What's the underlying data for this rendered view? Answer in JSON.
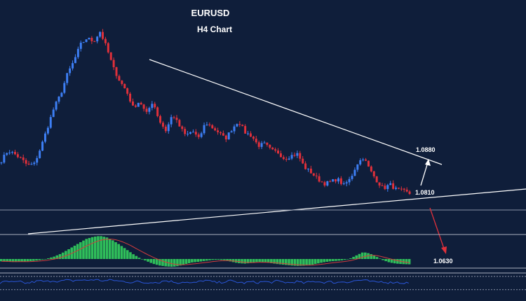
{
  "chart_data": {
    "type": "candlestick",
    "title": "EURUSD",
    "subtitle": "H4 Chart",
    "xlabel": "",
    "ylabel": "",
    "grid": false,
    "colors": {
      "background": "#0f1e3a",
      "up": "#3d7ff5",
      "down": "#e0303a",
      "trendline": "#ffffff",
      "support_line": "#8a92a6",
      "target_up_arrow": "#ffffff",
      "target_down_arrow": "#e0303a",
      "histogram_positive": "#2fbe5a",
      "histogram_negative": "#2fbe5a",
      "signal_line": "#d23c3c",
      "oscillator_line": "#2a56d9",
      "oscillator_levels": "#8a92a6"
    },
    "price_levels": [
      {
        "label": "1.0880",
        "value": 1.088
      },
      {
        "label": "1.0810",
        "value": 1.081
      },
      {
        "label": "1.0630",
        "value": 1.063
      }
    ],
    "close_path": [
      1.09,
      1.093,
      1.092,
      1.0905,
      1.0885,
      1.089,
      1.094,
      1.1,
      1.106,
      1.11,
      1.116,
      1.12,
      1.125,
      1.127,
      1.126,
      1.129,
      1.124,
      1.118,
      1.114,
      1.111,
      1.106,
      1.108,
      1.104,
      1.108,
      1.102,
      1.099,
      1.104,
      1.1005,
      1.0975,
      1.099,
      1.0965,
      1.1015,
      1.1,
      1.0985,
      1.0965,
      1.0995,
      1.102,
      1.0985,
      1.0975,
      1.0945,
      1.095,
      1.093,
      1.0925,
      1.0905,
      1.0915,
      1.092,
      1.088,
      1.0865,
      1.0845,
      1.083,
      1.0835,
      1.0845,
      1.0825,
      1.0845,
      1.089,
      1.091,
      1.087,
      1.084,
      1.0815,
      1.0828,
      1.0812,
      1.0808,
      1.08
    ],
    "macd_histogram": [
      -0.1,
      -0.12,
      -0.13,
      -0.12,
      -0.1,
      -0.08,
      -0.04,
      0.02,
      0.1,
      0.22,
      0.38,
      0.55,
      0.72,
      0.88,
      0.96,
      1.0,
      0.94,
      0.8,
      0.62,
      0.42,
      0.22,
      0.05,
      -0.08,
      -0.2,
      -0.28,
      -0.32,
      -0.34,
      -0.3,
      -0.22,
      -0.15,
      -0.12,
      -0.08,
      -0.04,
      -0.03,
      -0.05,
      -0.12,
      -0.18,
      -0.2,
      -0.17,
      -0.12,
      -0.14,
      -0.18,
      -0.22,
      -0.25,
      -0.28,
      -0.3,
      -0.29,
      -0.26,
      -0.2,
      -0.14,
      -0.1,
      -0.08,
      -0.05,
      0.02,
      0.16,
      0.3,
      0.24,
      0.1,
      -0.05,
      -0.15,
      -0.2,
      -0.22,
      -0.23
    ],
    "oscillator": [
      -0.15,
      0.1,
      -0.05,
      0.05,
      -0.2,
      0.0,
      0.2,
      0.05,
      0.25,
      0.1,
      0.3,
      0.2,
      0.35,
      0.25,
      0.4,
      0.3,
      0.2,
      0.35,
      0.15,
      0.1,
      -0.05,
      0.1,
      -0.15,
      0.05,
      -0.1,
      0.25,
      0.1,
      -0.1,
      0.05,
      -0.2,
      0.0,
      0.3,
      0.1,
      -0.1,
      0.05,
      0.2,
      0.0,
      -0.15,
      0.05,
      -0.1,
      0.1,
      -0.05,
      0.15,
      0.0,
      -0.1,
      0.1,
      -0.15,
      0.0,
      0.15,
      -0.05,
      0.05,
      -0.1,
      0.1,
      0.0,
      0.25,
      0.3,
      0.15,
      -0.05,
      0.1,
      -0.1,
      0.0,
      -0.15,
      -0.1
    ]
  }
}
